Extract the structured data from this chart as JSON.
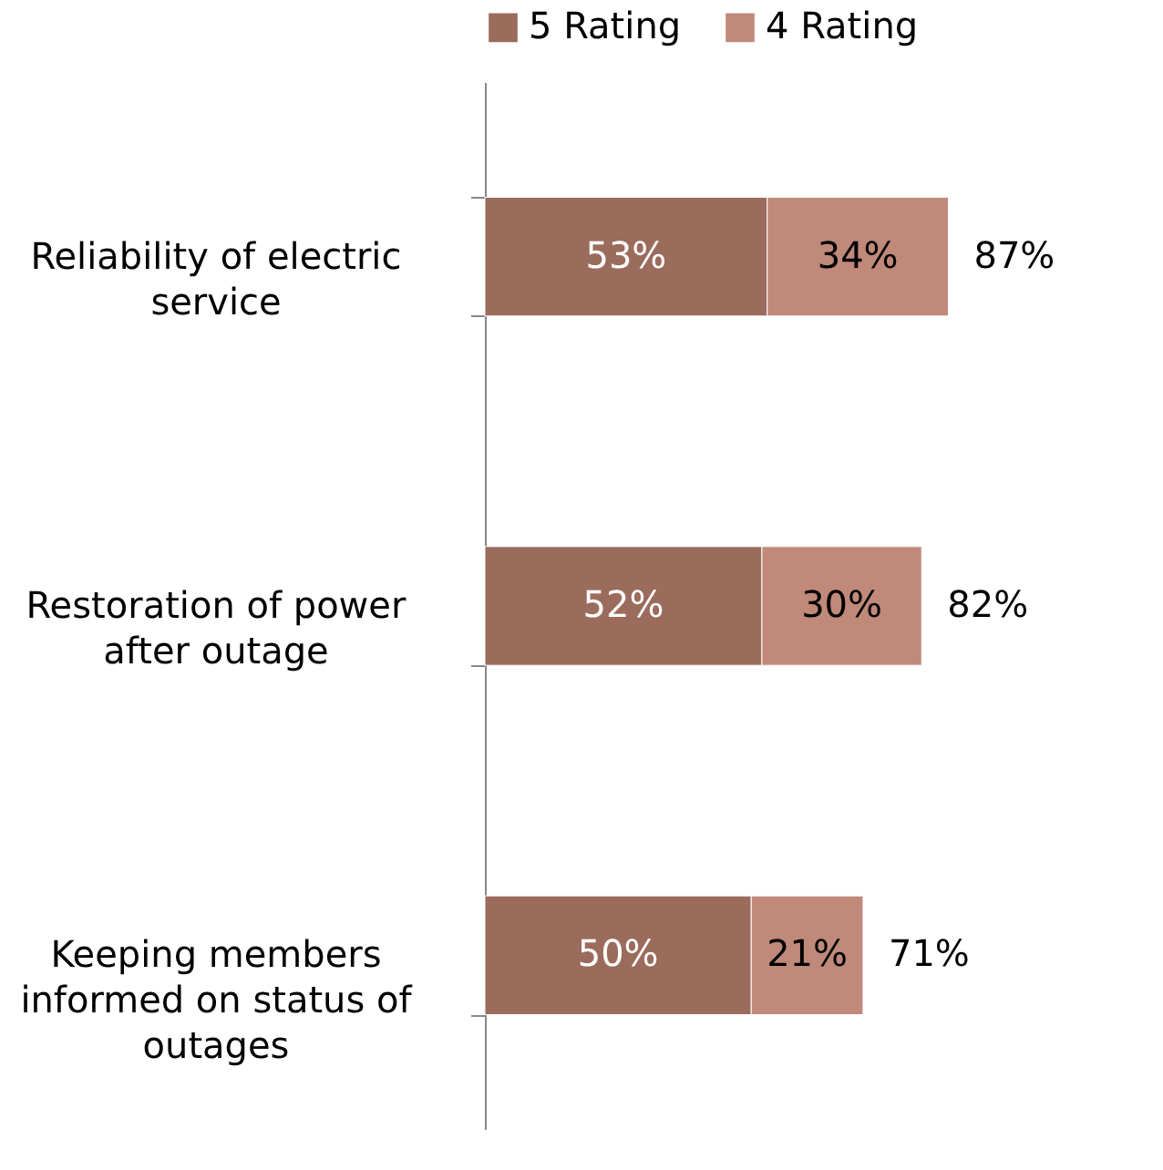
{
  "chart_data": {
    "type": "bar",
    "orientation": "horizontal",
    "stacked": true,
    "legend": "top",
    "categories": [
      "Reliability of electric service",
      "Restoration of power after outage",
      "Keeping members informed on status of outages"
    ],
    "series": [
      {
        "name": "5 Rating",
        "color": "#9b6b5c",
        "values": [
          53,
          52,
          50
        ],
        "value_labels": [
          "53%",
          "52%",
          "50%"
        ]
      },
      {
        "name": "4 Rating",
        "color": "#c0897a",
        "values": [
          34,
          30,
          21
        ],
        "value_labels": [
          "34%",
          "30%",
          "21%"
        ]
      }
    ],
    "totals": [
      "87%",
      "82%",
      "71%"
    ]
  }
}
